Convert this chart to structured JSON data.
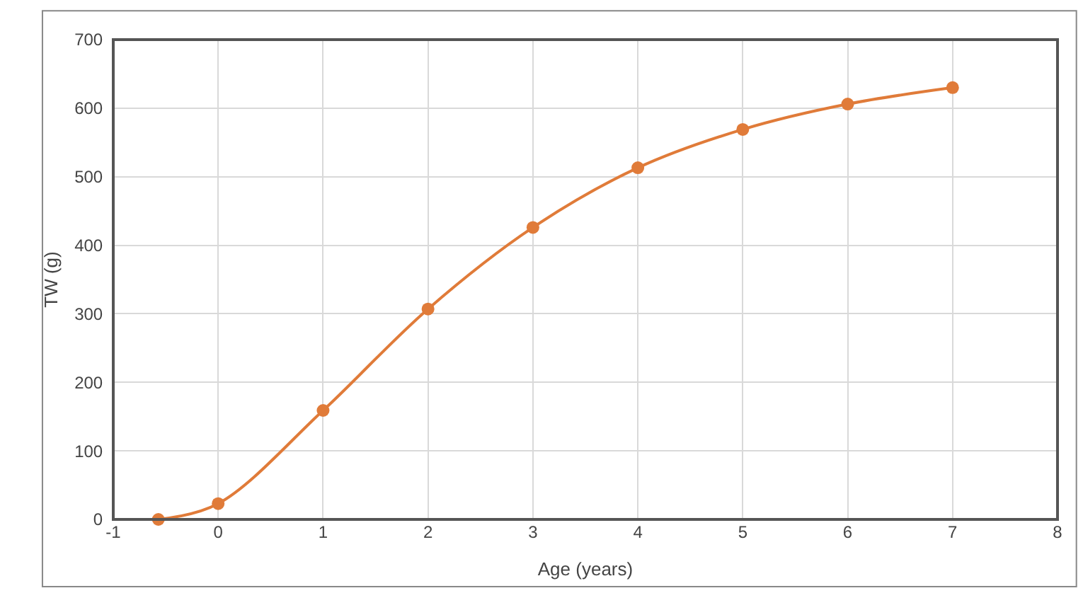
{
  "chart_data": {
    "type": "line",
    "xlabel": "Age (years)",
    "ylabel": "TW (g)",
    "x": [
      -0.57,
      0,
      1,
      2,
      3,
      4,
      5,
      6,
      7
    ],
    "series": [
      {
        "color": "#e07b39",
        "values": [
          0,
          23,
          159,
          307,
          426,
          513,
          569,
          606,
          630
        ]
      }
    ],
    "xlim": [
      -1,
      8
    ],
    "xticks": [
      -1,
      0,
      1,
      2,
      3,
      4,
      5,
      6,
      7,
      8
    ],
    "ylim": [
      0,
      700
    ],
    "yticks": [
      0,
      100,
      200,
      300,
      400,
      500,
      600,
      700
    ],
    "grid": true,
    "marker": "circle",
    "line_style": "solid",
    "legend": false
  }
}
